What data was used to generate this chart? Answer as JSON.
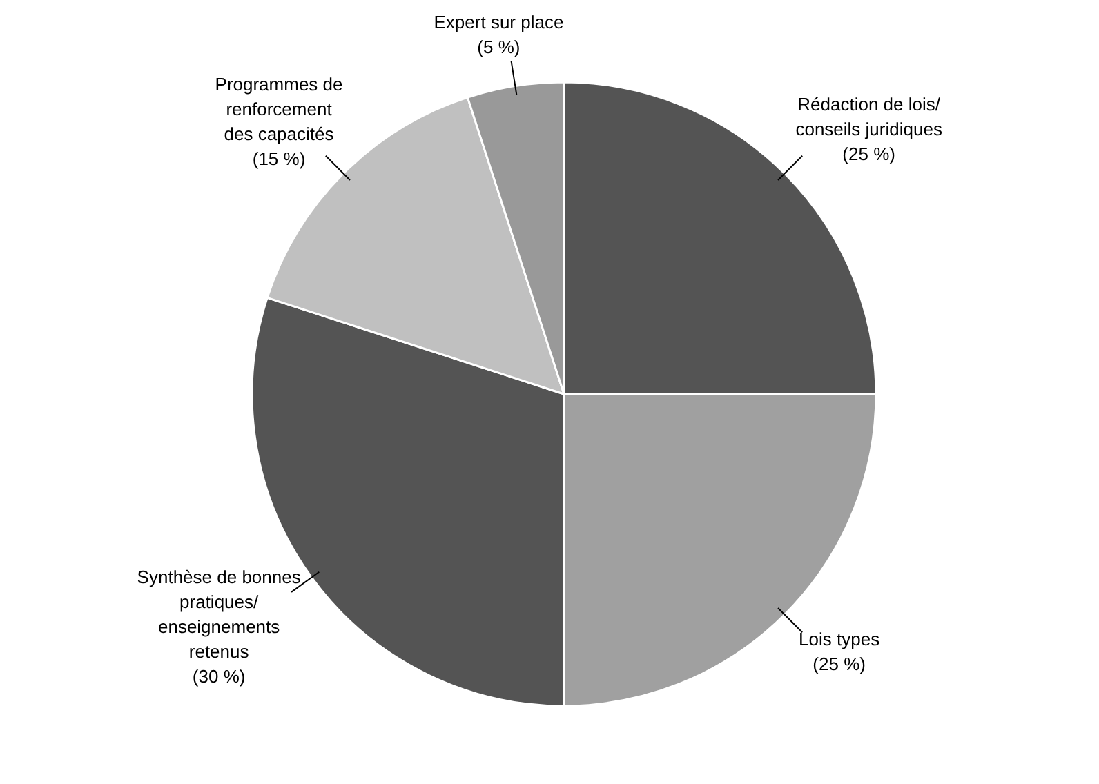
{
  "chart_data": {
    "type": "pie",
    "categories": [
      "Rédaction de lois/\nconseils juridiques",
      "Lois types",
      "Synthèse de bonnes\npratiques/\nenseignements\nretenus",
      "Programmes de\nrenforcement\ndes capacités",
      "Expert sur place"
    ],
    "values": [
      25,
      25,
      30,
      15,
      5
    ],
    "colors": [
      "#545454",
      "#a0a0a0",
      "#545454",
      "#c0c0c0",
      "#999999"
    ],
    "value_labels": [
      "(25 %)",
      "(25 %)",
      "(30 %)",
      "(15 %)",
      "(5 %)"
    ]
  }
}
